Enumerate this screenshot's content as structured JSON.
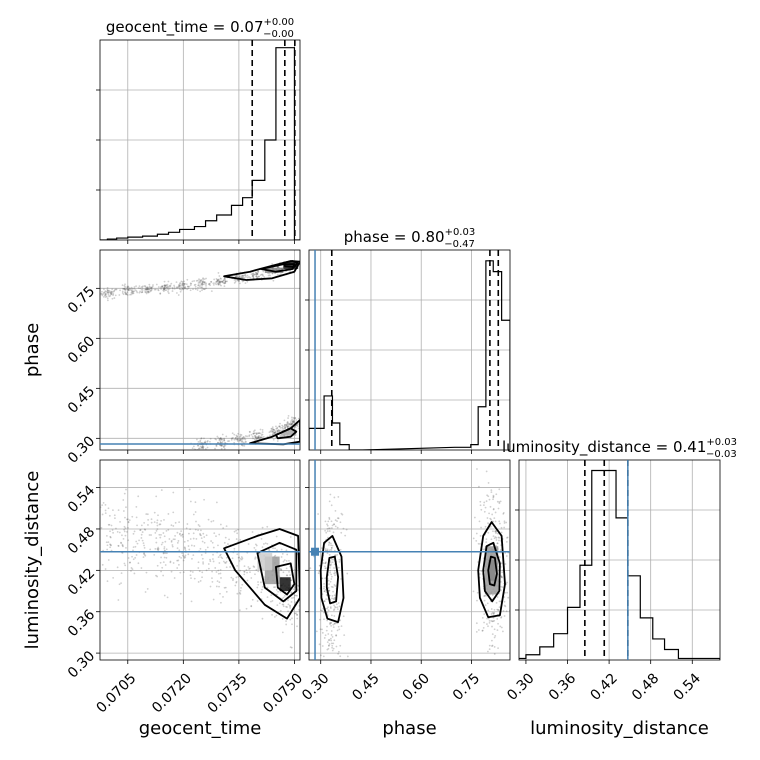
{
  "chart_data": {
    "type": "corner",
    "parameters": [
      "geocent_time",
      "phase",
      "luminosity_distance"
    ],
    "truths": {
      "geocent_time": null,
      "phase": 0.283,
      "luminosity_distance": 0.447
    },
    "truth_color": "#4682b4",
    "grid": true,
    "diagonal": [
      {
        "param": "geocent_time",
        "title_main": "geocent_time = 0.07",
        "title_sup": "+0.00",
        "title_sub": "−0.00",
        "range": [
          0.06975,
          0.07515
        ],
        "quantiles": [
          0.07386,
          0.07474,
          0.07501
        ],
        "bins": [
          {
            "x0": 0.06975,
            "x1": 0.06995,
            "v": 0.0
          },
          {
            "x0": 0.06995,
            "x1": 0.0702,
            "v": 0.5
          },
          {
            "x0": 0.0702,
            "x1": 0.0705,
            "v": 1.0
          },
          {
            "x0": 0.0705,
            "x1": 0.0709,
            "v": 1.5
          },
          {
            "x0": 0.0709,
            "x1": 0.0713,
            "v": 2.0
          },
          {
            "x0": 0.0713,
            "x1": 0.0716,
            "v": 3.0
          },
          {
            "x0": 0.0716,
            "x1": 0.0719,
            "v": 4.0
          },
          {
            "x0": 0.0719,
            "x1": 0.0723,
            "v": 5.5
          },
          {
            "x0": 0.0723,
            "x1": 0.0726,
            "v": 7.0
          },
          {
            "x0": 0.0726,
            "x1": 0.0729,
            "v": 10.0
          },
          {
            "x0": 0.0729,
            "x1": 0.0733,
            "v": 13.0
          },
          {
            "x0": 0.0733,
            "x1": 0.0736,
            "v": 18.0
          },
          {
            "x0": 0.0736,
            "x1": 0.07386,
            "v": 22.0
          },
          {
            "x0": 0.07386,
            "x1": 0.0742,
            "v": 31.0
          },
          {
            "x0": 0.0742,
            "x1": 0.0745,
            "v": 52.0
          },
          {
            "x0": 0.0745,
            "x1": 0.0748,
            "v": 100.0
          },
          {
            "x0": 0.0748,
            "x1": 0.075,
            "v": 100.0
          },
          {
            "x0": 0.075,
            "x1": 0.0752,
            "v": 0.0
          }
        ],
        "ymax": 104
      },
      {
        "param": "phase",
        "title_main": "phase = 0.80",
        "title_sup": "+0.03",
        "title_sub": "−0.47",
        "range": [
          0.265,
          0.865
        ],
        "quantiles": [
          0.333,
          0.805,
          0.83
        ],
        "bins": [
          {
            "x0": 0.265,
            "x1": 0.31,
            "v": 4
          },
          {
            "x0": 0.31,
            "x1": 0.335,
            "v": 10
          },
          {
            "x0": 0.335,
            "x1": 0.357,
            "v": 5
          },
          {
            "x0": 0.357,
            "x1": 0.385,
            "v": 1
          },
          {
            "x0": 0.385,
            "x1": 0.425,
            "v": 0
          },
          {
            "x0": 0.7,
            "x1": 0.748,
            "v": 0.5
          },
          {
            "x0": 0.748,
            "x1": 0.77,
            "v": 1
          },
          {
            "x0": 0.77,
            "x1": 0.793,
            "v": 8
          },
          {
            "x0": 0.793,
            "x1": 0.815,
            "v": 35
          },
          {
            "x0": 0.815,
            "x1": 0.84,
            "v": 33
          },
          {
            "x0": 0.84,
            "x1": 0.865,
            "v": 24
          }
        ],
        "ymax": 37
      },
      {
        "param": "luminosity_distance",
        "title_main": "luminosity_distance = 0.41",
        "title_sup": "+0.03",
        "title_sub": "−0.03",
        "range": [
          0.285,
          0.58
        ],
        "quantiles": [
          0.385,
          0.413,
          0.447
        ],
        "bins": [
          {
            "x0": 0.285,
            "x1": 0.3,
            "v": 0.3
          },
          {
            "x0": 0.3,
            "x1": 0.32,
            "v": 1
          },
          {
            "x0": 0.32,
            "x1": 0.34,
            "v": 2.5
          },
          {
            "x0": 0.34,
            "x1": 0.36,
            "v": 5
          },
          {
            "x0": 0.36,
            "x1": 0.378,
            "v": 10
          },
          {
            "x0": 0.378,
            "x1": 0.395,
            "v": 18
          },
          {
            "x0": 0.395,
            "x1": 0.413,
            "v": 36
          },
          {
            "x0": 0.413,
            "x1": 0.43,
            "v": 36
          },
          {
            "x0": 0.43,
            "x1": 0.447,
            "v": 27
          },
          {
            "x0": 0.447,
            "x1": 0.465,
            "v": 16
          },
          {
            "x0": 0.465,
            "x1": 0.483,
            "v": 8
          },
          {
            "x0": 0.483,
            "x1": 0.5,
            "v": 4
          },
          {
            "x0": 0.5,
            "x1": 0.52,
            "v": 2
          },
          {
            "x0": 0.52,
            "x1": 0.58,
            "v": 0.3
          }
        ],
        "ymax": 38
      }
    ],
    "axes_ranges": {
      "geocent_time": [
        0.06975,
        0.07515
      ],
      "phase": [
        0.265,
        0.865
      ],
      "luminosity_distance": [
        0.29,
        0.58
      ]
    },
    "ticks": {
      "geocent_time": [
        0.0705,
        0.072,
        0.0735,
        0.075
      ],
      "geocent_time_labels": [
        "0.0705",
        "0.0720",
        "0.0735",
        "0.0750"
      ],
      "phase": [
        0.3,
        0.45,
        0.6,
        0.75
      ],
      "phase_labels": [
        "0.30",
        "0.45",
        "0.60",
        "0.75"
      ],
      "luminosity_distance": [
        0.3,
        0.36,
        0.42,
        0.48,
        0.54
      ],
      "luminosity_distance_labels": [
        "0.30",
        "0.36",
        "0.42",
        "0.48",
        "0.54"
      ]
    },
    "xlabels": [
      "geocent_time",
      "phase",
      "luminosity_distance"
    ],
    "ylabels": [
      "",
      "phase",
      "luminosity_distance"
    ],
    "scatter_panels": [
      {
        "x": "geocent_time",
        "y": "phase",
        "clusters": [
          {
            "points": [
              [
                0.07,
                0.735
              ],
              [
                0.0705,
                0.742
              ],
              [
                0.071,
                0.748
              ],
              [
                0.0715,
                0.752
              ],
              [
                0.072,
                0.757
              ],
              [
                0.0725,
                0.762
              ],
              [
                0.073,
                0.77
              ],
              [
                0.0735,
                0.778
              ],
              [
                0.074,
                0.79
              ],
              [
                0.0745,
                0.805
              ],
              [
                0.0748,
                0.815
              ],
              [
                0.075,
                0.82
              ]
            ],
            "spread": [
              0.00012,
              0.008
            ]
          },
          {
            "points": [
              [
                0.0725,
                0.282
              ],
              [
                0.073,
                0.288
              ],
              [
                0.0735,
                0.296
              ],
              [
                0.074,
                0.305
              ],
              [
                0.0745,
                0.318
              ],
              [
                0.0748,
                0.332
              ],
              [
                0.075,
                0.345
              ]
            ],
            "spread": [
              0.0001,
              0.01
            ]
          }
        ],
        "contours": [
          [
            [
              0.0731,
              0.786
            ],
            [
              0.0738,
              0.8
            ],
            [
              0.0744,
              0.818
            ],
            [
              0.0749,
              0.832
            ],
            [
              0.07515,
              0.83
            ],
            [
              0.075,
              0.8
            ],
            [
              0.0744,
              0.78
            ],
            [
              0.0737,
              0.775
            ],
            [
              0.0731,
              0.786
            ]
          ],
          [
            [
              0.0741,
              0.808
            ],
            [
              0.0747,
              0.822
            ],
            [
              0.075,
              0.823
            ],
            [
              0.07495,
              0.808
            ],
            [
              0.0745,
              0.8
            ],
            [
              0.0741,
              0.808
            ]
          ],
          [
            [
              0.0747,
              0.826
            ],
            [
              0.07495,
              0.832
            ],
            [
              0.07508,
              0.826
            ],
            [
              0.075,
              0.814
            ],
            [
              0.07475,
              0.816
            ],
            [
              0.0747,
              0.826
            ]
          ],
          [
            [
              0.0738,
              0.285
            ],
            [
              0.0744,
              0.305
            ],
            [
              0.0749,
              0.33
            ],
            [
              0.07515,
              0.355
            ],
            [
              0.07515,
              0.29
            ],
            [
              0.0747,
              0.282
            ],
            [
              0.0738,
              0.285
            ]
          ],
          [
            [
              0.0745,
              0.31
            ],
            [
              0.0749,
              0.33
            ],
            [
              0.07505,
              0.32
            ],
            [
              0.0749,
              0.305
            ],
            [
              0.07455,
              0.3
            ],
            [
              0.0745,
              0.31
            ]
          ]
        ],
        "cores": [
          {
            "x": [
              0.0747,
              0.0751
            ],
            "y": [
              0.808,
              0.83
            ],
            "shade": "#222"
          },
          {
            "x": [
              0.0742,
              0.0747
            ],
            "y": [
              0.796,
              0.812
            ],
            "shade": "#888"
          },
          {
            "x": [
              0.07465,
              0.07505
            ],
            "y": [
              0.308,
              0.326
            ],
            "shade": "#aaa"
          }
        ]
      },
      {
        "x": "geocent_time",
        "y": "luminosity_distance",
        "clusters": [
          {
            "points": [
              [
                0.07,
                0.47
              ],
              [
                0.0705,
                0.465
              ],
              [
                0.071,
                0.46
              ],
              [
                0.0715,
                0.455
              ],
              [
                0.072,
                0.45
              ],
              [
                0.0725,
                0.445
              ],
              [
                0.073,
                0.44
              ],
              [
                0.0735,
                0.432
              ],
              [
                0.074,
                0.42
              ],
              [
                0.0745,
                0.408
              ],
              [
                0.0748,
                0.395
              ],
              [
                0.075,
                0.38
              ]
            ],
            "spread": [
              0.0002,
              0.03
            ]
          }
        ],
        "contours": [
          [
            [
              0.0731,
              0.452
            ],
            [
              0.074,
              0.47
            ],
            [
              0.0746,
              0.48
            ],
            [
              0.0751,
              0.47
            ],
            [
              0.07515,
              0.38
            ],
            [
              0.0748,
              0.35
            ],
            [
              0.0742,
              0.37
            ],
            [
              0.0734,
              0.42
            ],
            [
              0.0731,
              0.452
            ]
          ],
          [
            [
              0.074,
              0.445
            ],
            [
              0.0746,
              0.46
            ],
            [
              0.07505,
              0.45
            ],
            [
              0.07505,
              0.39
            ],
            [
              0.0747,
              0.375
            ],
            [
              0.0742,
              0.395
            ],
            [
              0.074,
              0.445
            ]
          ],
          [
            [
              0.0745,
              0.425
            ],
            [
              0.0749,
              0.43
            ],
            [
              0.075,
              0.4
            ],
            [
              0.0748,
              0.385
            ],
            [
              0.07455,
              0.395
            ],
            [
              0.0745,
              0.425
            ]
          ]
        ],
        "cores": [
          {
            "x": [
              0.0746,
              0.0749
            ],
            "y": [
              0.39,
              0.41
            ],
            "shade": "#111"
          },
          {
            "x": [
              0.0742,
              0.0746
            ],
            "y": [
              0.4,
              0.44
            ],
            "shade": "#999"
          },
          {
            "x": [
              0.074,
              0.0744
            ],
            "y": [
              0.42,
              0.445
            ],
            "shade": "#ccc"
          }
        ]
      },
      {
        "x": "phase",
        "y": "luminosity_distance",
        "clusters": [
          {
            "points": [
              [
                0.33,
                0.4
              ],
              [
                0.33,
                0.36
              ],
              [
                0.33,
                0.44
              ],
              [
                0.33,
                0.32
              ],
              [
                0.33,
                0.48
              ]
            ],
            "spread": [
              0.018,
              0.03
            ]
          },
          {
            "points": [
              [
                0.81,
                0.42
              ],
              [
                0.81,
                0.38
              ],
              [
                0.81,
                0.46
              ],
              [
                0.81,
                0.34
              ],
              [
                0.81,
                0.5
              ],
              [
                0.825,
                0.43
              ]
            ],
            "spread": [
              0.022,
              0.03
            ]
          }
        ],
        "contours": [
          [
            [
              0.3,
              0.42
            ],
            [
              0.31,
              0.46
            ],
            [
              0.335,
              0.47
            ],
            [
              0.362,
              0.44
            ],
            [
              0.368,
              0.38
            ],
            [
              0.352,
              0.345
            ],
            [
              0.32,
              0.35
            ],
            [
              0.302,
              0.38
            ],
            [
              0.3,
              0.42
            ]
          ],
          [
            [
              0.318,
              0.41
            ],
            [
              0.326,
              0.438
            ],
            [
              0.342,
              0.44
            ],
            [
              0.352,
              0.41
            ],
            [
              0.346,
              0.375
            ],
            [
              0.328,
              0.372
            ],
            [
              0.318,
              0.395
            ],
            [
              0.318,
              0.41
            ]
          ],
          [
            [
              0.77,
              0.42
            ],
            [
              0.785,
              0.47
            ],
            [
              0.81,
              0.49
            ],
            [
              0.84,
              0.47
            ],
            [
              0.85,
              0.4
            ],
            [
              0.835,
              0.355
            ],
            [
              0.8,
              0.352
            ],
            [
              0.775,
              0.38
            ],
            [
              0.77,
              0.42
            ]
          ],
          [
            [
              0.785,
              0.42
            ],
            [
              0.795,
              0.455
            ],
            [
              0.815,
              0.46
            ],
            [
              0.835,
              0.43
            ],
            [
              0.833,
              0.39
            ],
            [
              0.812,
              0.375
            ],
            [
              0.79,
              0.39
            ],
            [
              0.785,
              0.42
            ]
          ],
          [
            [
              0.8,
              0.42
            ],
            [
              0.808,
              0.44
            ],
            [
              0.82,
              0.438
            ],
            [
              0.826,
              0.415
            ],
            [
              0.818,
              0.398
            ],
            [
              0.805,
              0.4
            ],
            [
              0.8,
              0.42
            ]
          ]
        ],
        "cores": [
          {
            "x": [
              0.8,
              0.82
            ],
            "y": [
              0.405,
              0.435
            ],
            "shade": "#111"
          },
          {
            "x": [
              0.79,
              0.83
            ],
            "y": [
              0.385,
              0.455
            ],
            "shade": "#999"
          }
        ]
      }
    ]
  }
}
